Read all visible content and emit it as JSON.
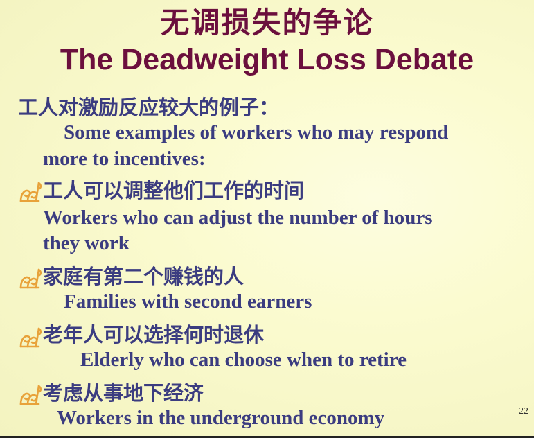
{
  "title": {
    "zh": "无调损失的争论",
    "en": "The Deadweight Loss Debate"
  },
  "intro": {
    "zh": "工人对激励反应较大的例子：",
    "en_line1": "Some examples of workers who may respond",
    "en_line2": "more to incentives:"
  },
  "bullets": [
    {
      "zh": "工人可以调整他们工作的时间",
      "en_line1": "Workers who can adjust the number of hours",
      "en_line2": "they work"
    },
    {
      "zh": "家庭有第二个赚钱的人",
      "en_line1": "Families with second earners"
    },
    {
      "zh": "老年人可以选择何时退休",
      "en_line1": "Elderly who can choose when to retire"
    },
    {
      "zh": "考虑从事地下经济",
      "en_line1": "Workers in the underground economy"
    }
  ],
  "page_number": "22",
  "colors": {
    "title": "#6b0f3d",
    "body_text": "#3b3c80",
    "bullet": "#e8a23a"
  },
  "icons": {
    "bullet": "scroll-bullet-icon"
  }
}
